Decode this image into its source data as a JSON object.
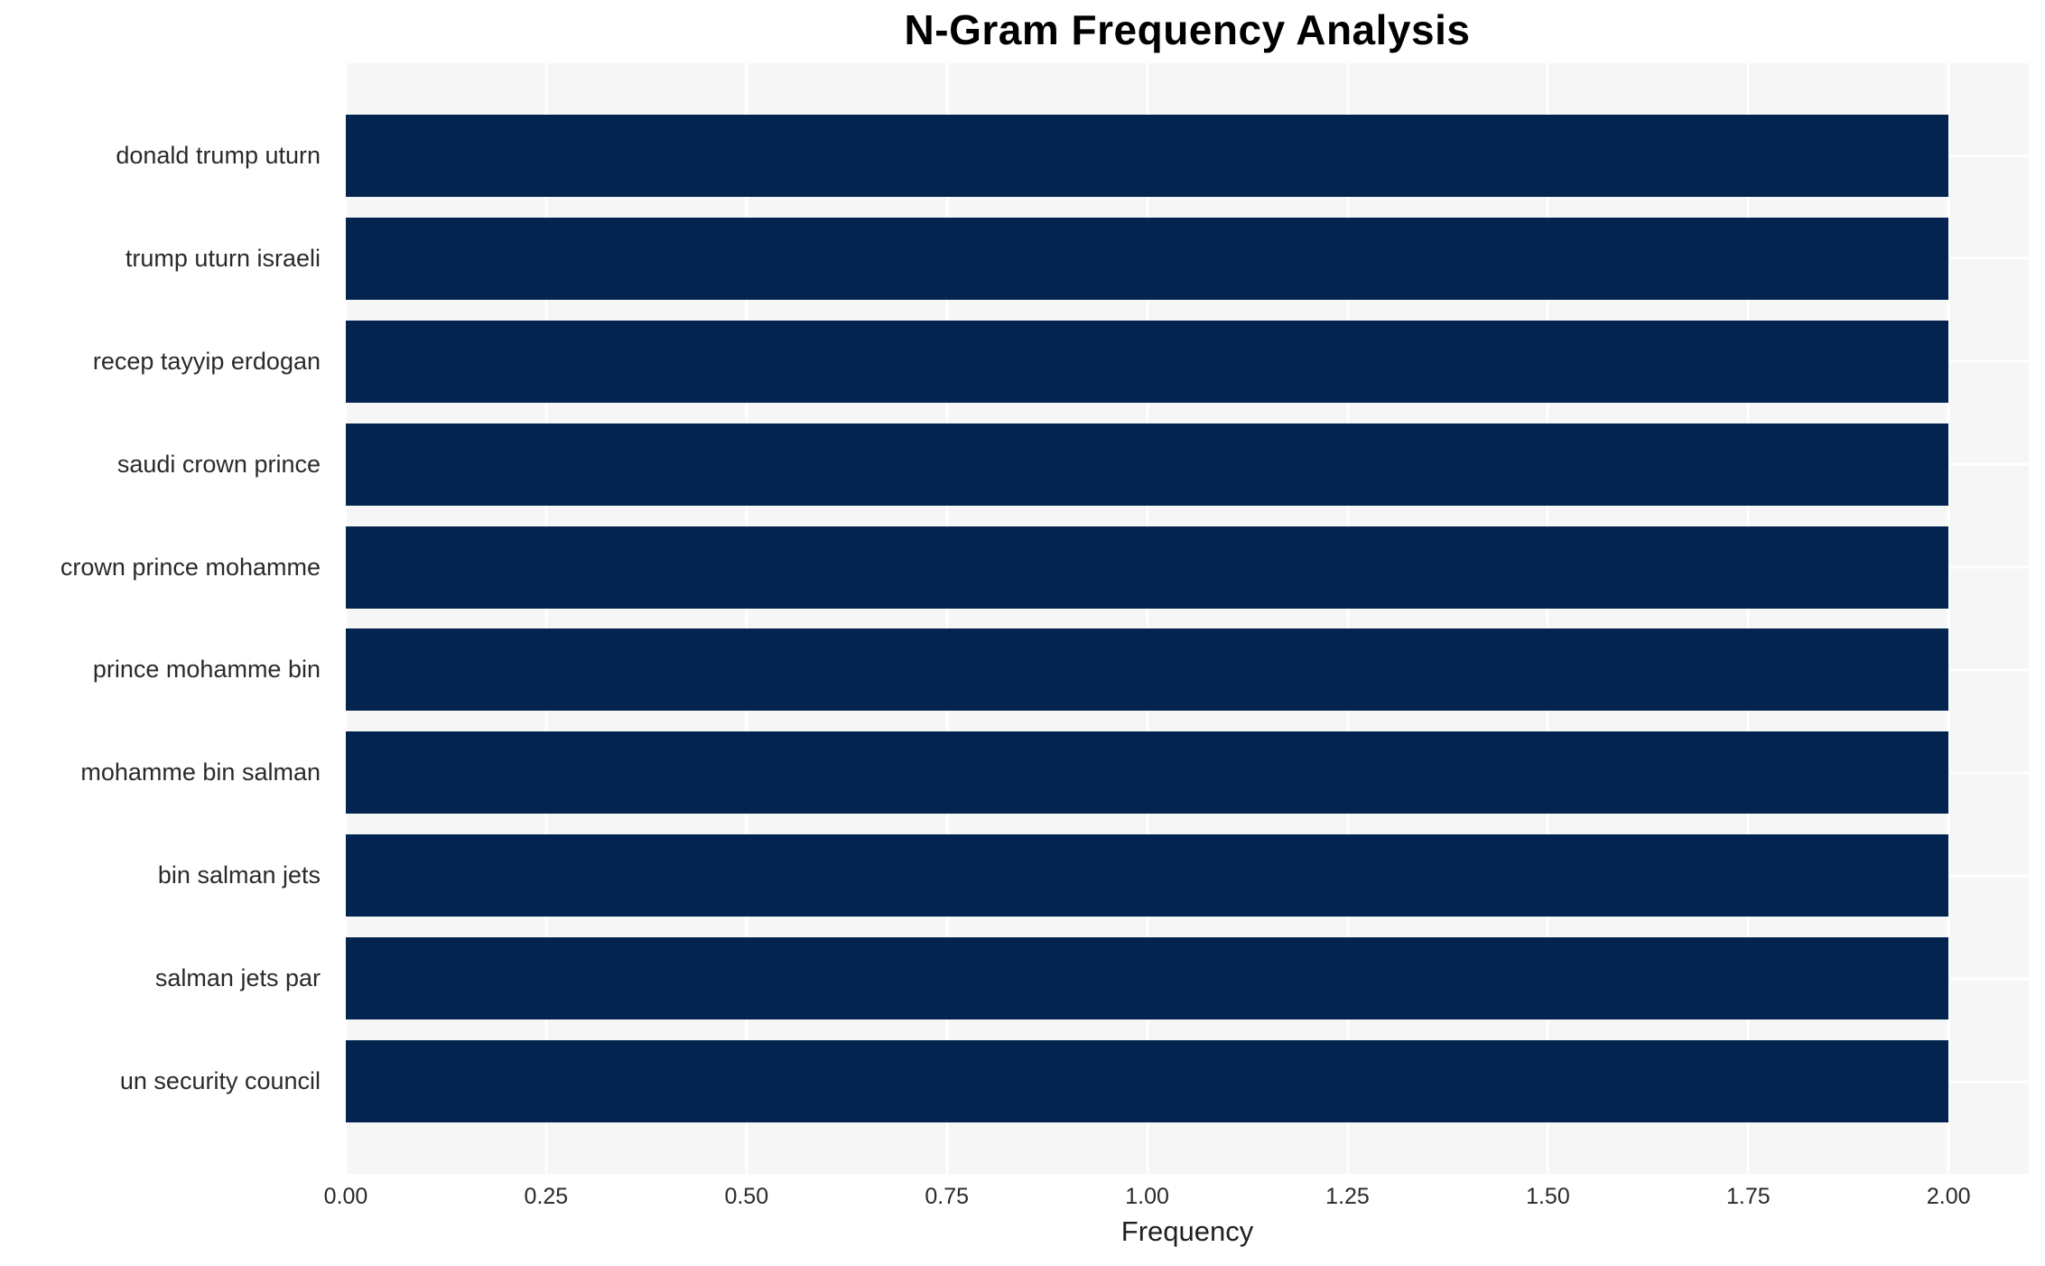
{
  "chart_data": {
    "type": "bar",
    "orientation": "horizontal",
    "title": "N-Gram Frequency Analysis",
    "xlabel": "Frequency",
    "ylabel": "",
    "categories": [
      "donald trump uturn",
      "trump uturn israeli",
      "recep tayyip erdogan",
      "saudi crown prince",
      "crown prince mohamme",
      "prince mohamme bin",
      "mohamme bin salman",
      "bin salman jets",
      "salman jets par",
      "un security council"
    ],
    "values": [
      2,
      2,
      2,
      2,
      2,
      2,
      2,
      2,
      2,
      2
    ],
    "xlim": [
      0,
      2.1
    ],
    "xticks": [
      "0.00",
      "0.25",
      "0.50",
      "0.75",
      "1.00",
      "1.25",
      "1.50",
      "1.75",
      "2.00"
    ],
    "xtick_values": [
      0,
      0.25,
      0.5,
      0.75,
      1.0,
      1.25,
      1.5,
      1.75,
      2.0
    ],
    "grid": true,
    "legend": false,
    "bar_height_fraction": 0.8,
    "colors": {
      "bar": "#02244e",
      "plot_background": "#f6f6f6",
      "gridline": "#ffffff",
      "title_text": "#000000",
      "tick_text": "#2a2a2a"
    }
  }
}
